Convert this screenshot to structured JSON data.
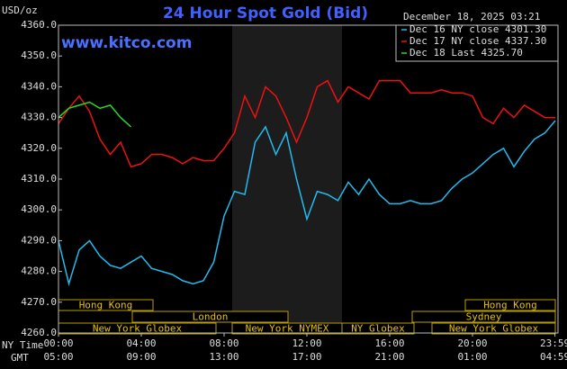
{
  "chart_data": {
    "type": "line",
    "title": "24 Hour Spot Gold (Bid)",
    "y_label": "USD/oz",
    "watermark": "www.kitco.com",
    "timestamp": "December 18, 2025 03:21",
    "x_label": "NY Time",
    "x2_label": "GMT",
    "xlim": [
      0,
      24
    ],
    "xticks": [
      {
        "value": 0,
        "label": "00:00"
      },
      {
        "value": 4,
        "label": "04:00"
      },
      {
        "value": 8,
        "label": "08:00"
      },
      {
        "value": 12,
        "label": "12:00"
      },
      {
        "value": 16,
        "label": "16:00"
      },
      {
        "value": 20,
        "label": "20:00"
      },
      {
        "value": 23.983,
        "label": "23:59"
      }
    ],
    "x2ticklabels": [
      "05:00",
      "09:00",
      "13:00",
      "17:00",
      "21:00",
      "01:00",
      "04:59"
    ],
    "ylim": [
      4260,
      4360
    ],
    "yticks": [
      {
        "value": 4360,
        "label": "4360.0"
      },
      {
        "value": 4350,
        "label": "4350.0"
      },
      {
        "value": 4340,
        "label": "4340.0"
      },
      {
        "value": 4330,
        "label": "4330.0"
      },
      {
        "value": 4320,
        "label": "4320.0"
      },
      {
        "value": 4310,
        "label": "4310.0"
      },
      {
        "value": 4300,
        "label": "4300.0"
      },
      {
        "value": 4290,
        "label": "4290.0"
      },
      {
        "value": 4280,
        "label": "4280.0"
      },
      {
        "value": 4270,
        "label": "4270.0"
      },
      {
        "value": 4260,
        "label": "4260.0"
      }
    ],
    "grid": false,
    "legend": "top-right",
    "sessions": [
      "Hong Kong",
      "London",
      "New York Globex",
      "New York NYMEX",
      "NY Globex",
      "Hong Kong",
      "Sydney",
      "New York Globex"
    ],
    "x": [
      0,
      0.5,
      1,
      1.5,
      2,
      2.5,
      3,
      3.5,
      4,
      4.5,
      5,
      5.5,
      6,
      6.5,
      7,
      7.5,
      8,
      8.5,
      9,
      9.5,
      10,
      10.5,
      11,
      11.5,
      12,
      12.5,
      13,
      13.5,
      14,
      14.5,
      15,
      15.5,
      16,
      16.5,
      17,
      17.5,
      18,
      18.5,
      19,
      19.5,
      20,
      20.5,
      21,
      21.5,
      22,
      22.5,
      23,
      23.5,
      24
    ],
    "series": [
      {
        "name": "Dec 16 NY close 4301.30",
        "color": "#22bbee",
        "values": [
          4290,
          4276,
          4287,
          4290,
          4285,
          4282,
          4281,
          4283,
          4285,
          4281,
          4280,
          4279,
          4277,
          4276,
          4277,
          4283,
          4298,
          4306,
          4305,
          4322,
          4327,
          4318,
          4325,
          4310,
          4297,
          4306,
          4305,
          4303,
          4309,
          4305,
          4310,
          4305,
          4302,
          4302,
          4303,
          4302,
          4302,
          4303,
          4307,
          4310,
          4312,
          4315,
          4318,
          4320,
          4314,
          4319,
          4323,
          4325,
          4329
        ]
      },
      {
        "name": "Dec 17 NY close 4337.30",
        "color": "#ee1111",
        "values": [
          4328,
          4333,
          4337,
          4332,
          4323,
          4318,
          4322,
          4314,
          4315,
          4318,
          4318,
          4317,
          4315,
          4317,
          4316,
          4316,
          4320,
          4325,
          4337,
          4330,
          4340,
          4337,
          4330,
          4322,
          4330,
          4340,
          4342,
          4335,
          4340,
          4338,
          4336,
          4342,
          4342,
          4342,
          4338,
          4338,
          4338,
          4339,
          4338,
          4338,
          4337,
          4330,
          4328,
          4333,
          4330,
          4334,
          4332,
          4330,
          4330
        ]
      },
      {
        "name": "Dec 18 Last 4325.70",
        "color": "#22dd22",
        "values": [
          4330,
          4333,
          4334,
          4335,
          4333,
          4334,
          4330,
          4327,
          null,
          null,
          null,
          null,
          null,
          null,
          null,
          null,
          null,
          null,
          null,
          null,
          null,
          null,
          null,
          null,
          null,
          null,
          null,
          null,
          null,
          null,
          null,
          null,
          null,
          null,
          null,
          null,
          null,
          null,
          null,
          null,
          null,
          null,
          null,
          null,
          null,
          null,
          null,
          null,
          null
        ]
      }
    ]
  }
}
